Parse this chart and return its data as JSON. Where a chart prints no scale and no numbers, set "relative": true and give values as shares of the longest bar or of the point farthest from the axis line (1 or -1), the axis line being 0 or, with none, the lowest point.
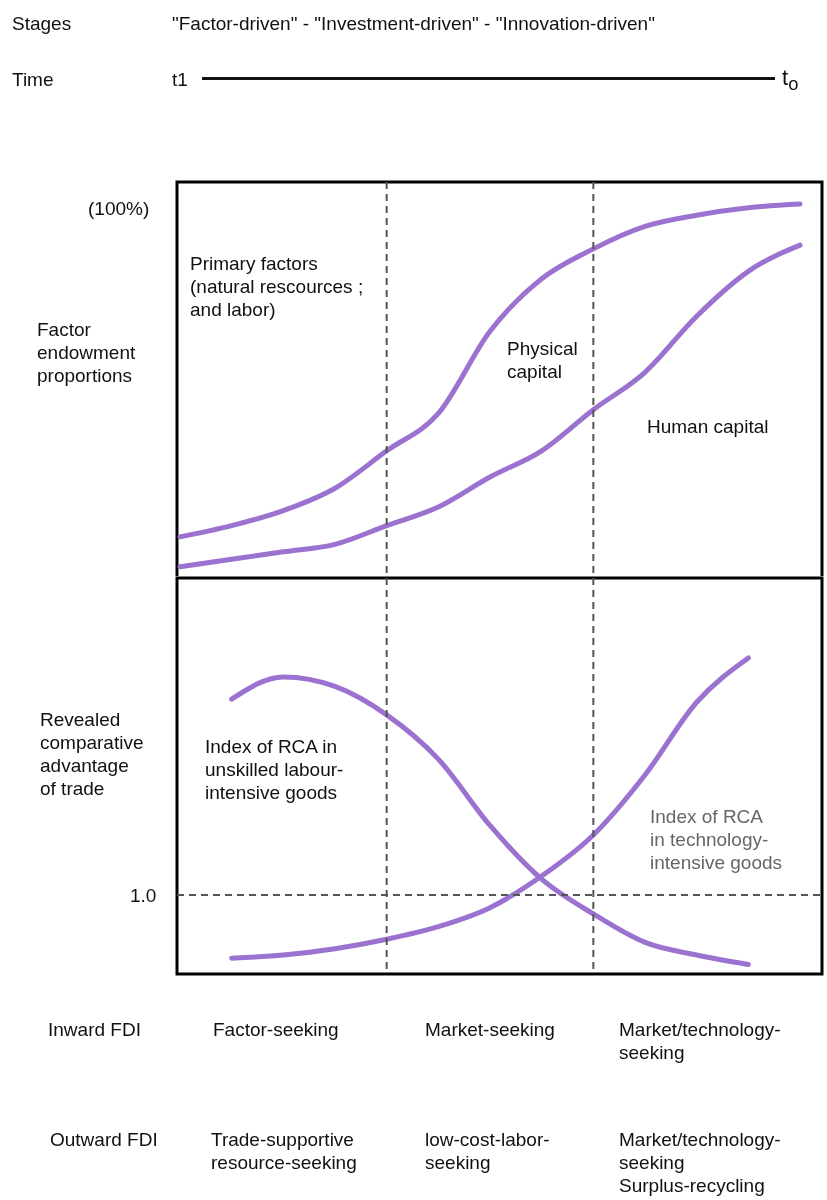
{
  "chart_data": [
    {
      "type": "line",
      "relative": true,
      "ylabel": "Factor\nendowment\nproportions",
      "line_style": "solid",
      "marker": "none",
      "categories": [
        null,
        null,
        null,
        null,
        null,
        null,
        null,
        null,
        null,
        null,
        null,
        null,
        null
      ],
      "series": [
        {
          "color": "#9b72d0",
          "values": [
            0.11,
            0.14,
            0.18,
            0.24,
            0.34,
            0.44,
            0.66,
            0.8,
            0.88,
            0.94,
            0.97,
            0.99,
            1
          ]
        },
        {
          "color": "#9b72d0",
          "values": [
            0.03,
            0.05,
            0.07,
            0.09,
            0.14,
            0.19,
            0.27,
            0.34,
            0.45,
            0.55,
            0.7,
            0.82,
            0.89
          ]
        }
      ],
      "annotations": [
        "Stages",
        "\"Factor-driven\" - \"Investment-driven\" - \"Innovation-driven\"",
        "Time",
        "t1",
        "t$_{o}$",
        "(100%)",
        "Primary factors\n(natural rescources ;\nand labor)",
        "Physical\ncapital",
        "Human capital"
      ]
    },
    {
      "type": "line",
      "relative": true,
      "ylabel": "Revealed\ncomparative\nadvantage\nof trade",
      "line_style": "solid",
      "marker": "none",
      "categories": [
        null,
        null,
        null,
        null,
        null,
        null,
        null,
        null,
        null,
        null,
        null,
        null,
        null
      ],
      "series": [
        {
          "name": "Index of RCA in\nunskilled labour-\nintensive goods",
          "color": "#9b72d0",
          "values": [
            null,
            0.87,
            0.94,
            0.91,
            0.82,
            0.68,
            0.47,
            0.3,
            0.19,
            0.1,
            0.06,
            0.03,
            null
          ]
        },
        {
          "name": "Index of RCA\nin technology-\nintensive goods",
          "color": "#9b72d0",
          "values": [
            null,
            0.05,
            0.06,
            0.08,
            0.11,
            0.15,
            0.21,
            0.31,
            0.44,
            0.63,
            0.86,
            1,
            null
          ]
        }
      ],
      "ref_lines": [
        {
          "axis": "y",
          "value": 0.25,
          "color": "#555555",
          "line_style": "dashed"
        }
      ],
      "annotations": [
        "1.0",
        "Inward FDI",
        "Factor-seeking",
        "Market-seeking",
        "Market/technology-\nseeking",
        "Outward FDI",
        "Trade-supportive\nresource-seeking",
        "low-cost-labor-\nseeking",
        "Market/technology-\nseeking\nSurplus-recycling"
      ]
    }
  ]
}
